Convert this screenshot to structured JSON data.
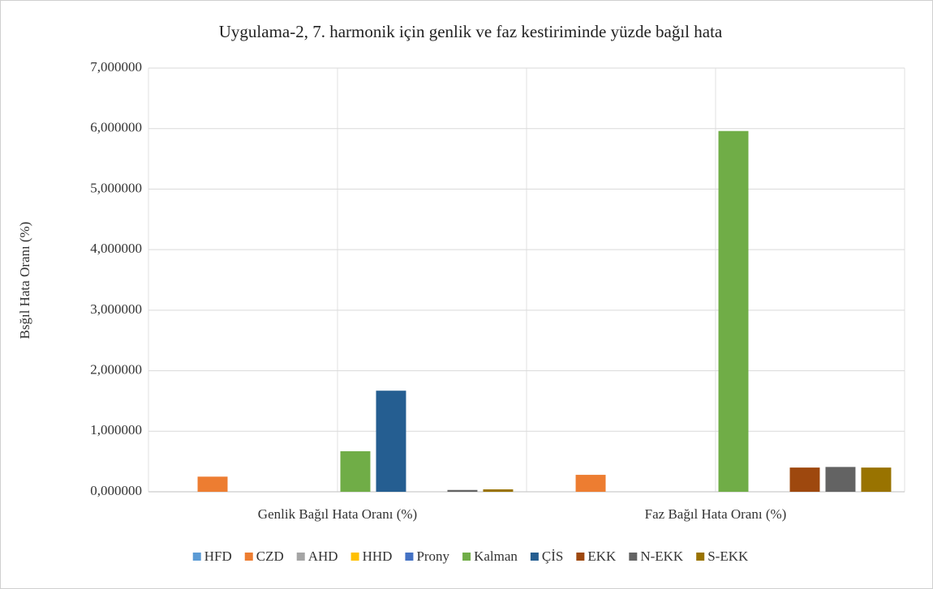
{
  "chart_data": {
    "type": "bar",
    "title": "Uygulama-2, 7. harmonik için genlik ve faz kestiriminde yüzde bağıl hata",
    "y_label": "Bsğıl Hata Oranı (%)",
    "categories": [
      "Genlik Bağıl Hata Oranı (%)",
      "Faz Bağıl Hata Oranı (%)"
    ],
    "series": [
      {
        "name": "HFD",
        "color": "#5b9bd5",
        "values": [
          0,
          0
        ]
      },
      {
        "name": "CZD",
        "color": "#ed7d31",
        "values": [
          0.25,
          0.28
        ]
      },
      {
        "name": "AHD",
        "color": "#a5a5a5",
        "values": [
          0,
          0
        ]
      },
      {
        "name": "HHD",
        "color": "#ffc000",
        "values": [
          0,
          0
        ]
      },
      {
        "name": "Prony",
        "color": "#4472c4",
        "values": [
          0,
          0
        ]
      },
      {
        "name": "Kalman",
        "color": "#70ad47",
        "values": [
          0.67,
          5.96
        ]
      },
      {
        "name": "ÇİS",
        "color": "#255e91",
        "values": [
          1.67,
          0
        ]
      },
      {
        "name": "EKK",
        "color": "#9e480e",
        "values": [
          0,
          0.4
        ]
      },
      {
        "name": "N-EKK",
        "color": "#636363",
        "values": [
          0.03,
          0.41
        ]
      },
      {
        "name": "S-EKK",
        "color": "#997300",
        "values": [
          0.04,
          0.4
        ]
      }
    ],
    "ylim": [
      0,
      7
    ],
    "yticks": [
      {
        "value": 0,
        "label": "0,000000"
      },
      {
        "value": 1,
        "label": "1,000000"
      },
      {
        "value": 2,
        "label": "2,000000"
      },
      {
        "value": 3,
        "label": "3,000000"
      },
      {
        "value": 4,
        "label": "4,000000"
      },
      {
        "value": 5,
        "label": "5,000000"
      },
      {
        "value": 6,
        "label": "6,000000"
      },
      {
        "value": 7,
        "label": "7,000000"
      }
    ],
    "grid": true,
    "legend": "bottom"
  }
}
